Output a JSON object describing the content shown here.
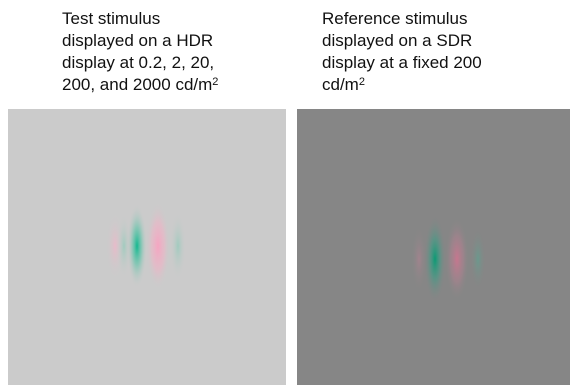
{
  "left_caption": {
    "line1": "Test stimulus",
    "line2": "displayed on a HDR",
    "line3": "display at 0.2, 2, 20,",
    "line4": "200, and 2000 cd/m",
    "sup": "2"
  },
  "right_caption": {
    "line1": "Reference stimulus",
    "line2": "displayed on a SDR",
    "line3": "display at a fixed 200",
    "line4": "cd/m",
    "sup": "2"
  },
  "colors": {
    "left_background": "#cbcbcb",
    "right_background": "#868686",
    "pink": "#f4a6c2",
    "teal": "#16b48f",
    "pink_dark": "#c07a95",
    "teal_dark": "#0f9373"
  }
}
